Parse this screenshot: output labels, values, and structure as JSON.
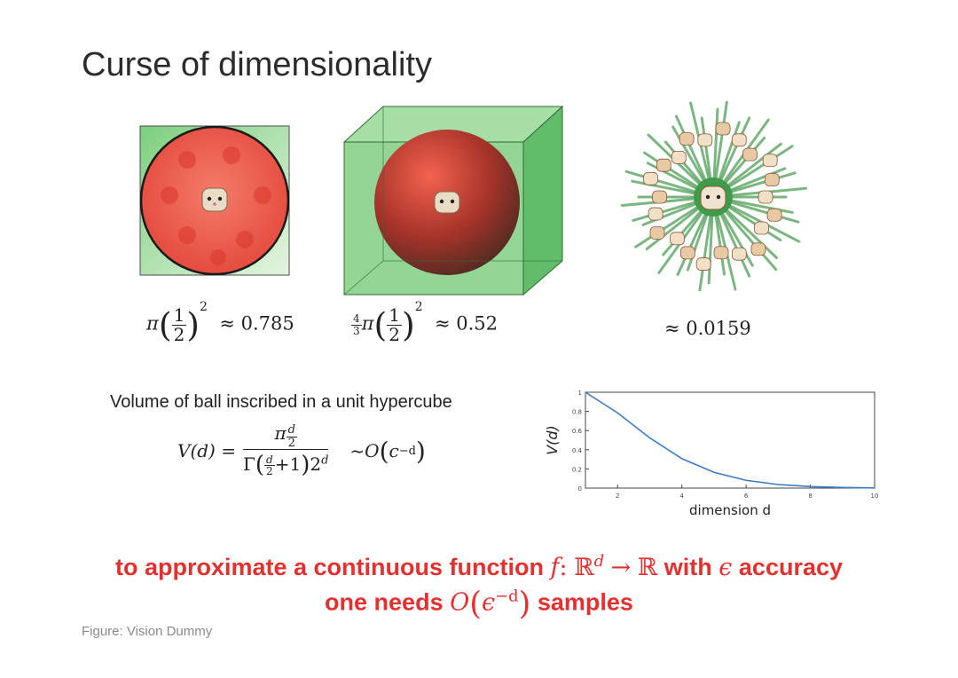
{
  "title": "Curse of dimensionality",
  "formulas": {
    "f2d": {
      "pi": "π",
      "num": "1",
      "den": "2",
      "exp": "2",
      "approx": "≈ 0.785"
    },
    "f3d": {
      "coef_num": "4",
      "coef_den": "3",
      "pi": "π",
      "num": "1",
      "den": "2",
      "exp": "2",
      "approx": "≈ 0.52"
    },
    "fnd": {
      "approx": "≈ 0.0159"
    }
  },
  "volume": {
    "subtitle": "Volume of ball inscribed in a unit hypercube",
    "lhs": "V(d) =",
    "num_base": "π",
    "num_exp_num": "d",
    "num_exp_den": "2",
    "den_gamma": "Γ",
    "den_frac_num": "d",
    "den_frac_den": "2",
    "den_plus": "+1",
    "den_tail": "2",
    "den_tail_exp": "d",
    "order": "~O",
    "order_base": "c",
    "order_exp": "−d"
  },
  "bottom": {
    "line1_a": "to approximate a continuous function",
    "line1_f": "f",
    "line1_colon": ":",
    "line1_R": "ℝ",
    "line1_d": "d",
    "line1_arrow": "→",
    "line1_R2": "ℝ",
    "line1_b": "with",
    "line1_eps": "ϵ",
    "line1_c": "accuracy",
    "line2_a": "one needs",
    "line2_O": "O",
    "line2_eps": "ϵ",
    "line2_exp": "−d",
    "line2_b": "samples"
  },
  "caption": "Figure: Vision Dummy",
  "chart_data": {
    "type": "line",
    "ylabel": "V(d)",
    "xlabel": "dimension d",
    "xlim": [
      1,
      10
    ],
    "ylim": [
      0,
      1
    ],
    "x_ticks": [
      "2",
      "4",
      "6",
      "8",
      "10"
    ],
    "y_ticks": [
      "0",
      "0.2",
      "0.4",
      "0.6",
      "0.8",
      "1"
    ],
    "series": [
      {
        "x": [
          1,
          2,
          3,
          4,
          5,
          6,
          7,
          8,
          9,
          10
        ],
        "values": [
          1.0,
          0.785,
          0.524,
          0.308,
          0.164,
          0.081,
          0.037,
          0.016,
          0.006,
          0.002
        ]
      }
    ],
    "grid": false,
    "color": "#3b7bbf"
  },
  "colors": {
    "accent_red": "#e53030",
    "ball_red": "#e8574a",
    "cube_green": "#5fbf6a",
    "line_blue": "#3b7bbf"
  }
}
